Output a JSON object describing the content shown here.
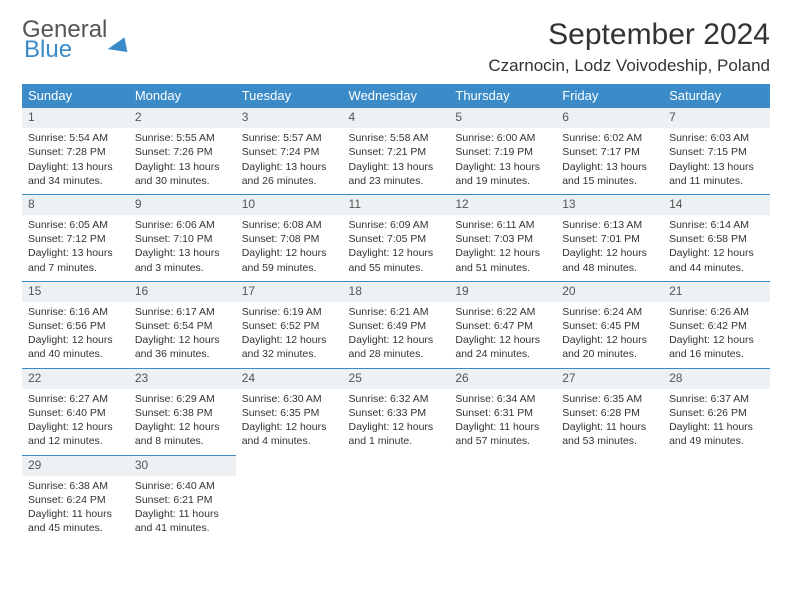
{
  "brand": {
    "name1": "General",
    "name2": "Blue"
  },
  "title": "September 2024",
  "location": "Czarnocin, Lodz Voivodeship, Poland",
  "colors": {
    "accent": "#3b8bc9",
    "row_bg": "#eef1f3",
    "text": "#333333"
  },
  "day_headers": [
    "Sunday",
    "Monday",
    "Tuesday",
    "Wednesday",
    "Thursday",
    "Friday",
    "Saturday"
  ],
  "weeks": [
    [
      {
        "n": "1",
        "sr": "Sunrise: 5:54 AM",
        "ss": "Sunset: 7:28 PM",
        "d1": "Daylight: 13 hours",
        "d2": "and 34 minutes."
      },
      {
        "n": "2",
        "sr": "Sunrise: 5:55 AM",
        "ss": "Sunset: 7:26 PM",
        "d1": "Daylight: 13 hours",
        "d2": "and 30 minutes."
      },
      {
        "n": "3",
        "sr": "Sunrise: 5:57 AM",
        "ss": "Sunset: 7:24 PM",
        "d1": "Daylight: 13 hours",
        "d2": "and 26 minutes."
      },
      {
        "n": "4",
        "sr": "Sunrise: 5:58 AM",
        "ss": "Sunset: 7:21 PM",
        "d1": "Daylight: 13 hours",
        "d2": "and 23 minutes."
      },
      {
        "n": "5",
        "sr": "Sunrise: 6:00 AM",
        "ss": "Sunset: 7:19 PM",
        "d1": "Daylight: 13 hours",
        "d2": "and 19 minutes."
      },
      {
        "n": "6",
        "sr": "Sunrise: 6:02 AM",
        "ss": "Sunset: 7:17 PM",
        "d1": "Daylight: 13 hours",
        "d2": "and 15 minutes."
      },
      {
        "n": "7",
        "sr": "Sunrise: 6:03 AM",
        "ss": "Sunset: 7:15 PM",
        "d1": "Daylight: 13 hours",
        "d2": "and 11 minutes."
      }
    ],
    [
      {
        "n": "8",
        "sr": "Sunrise: 6:05 AM",
        "ss": "Sunset: 7:12 PM",
        "d1": "Daylight: 13 hours",
        "d2": "and 7 minutes."
      },
      {
        "n": "9",
        "sr": "Sunrise: 6:06 AM",
        "ss": "Sunset: 7:10 PM",
        "d1": "Daylight: 13 hours",
        "d2": "and 3 minutes."
      },
      {
        "n": "10",
        "sr": "Sunrise: 6:08 AM",
        "ss": "Sunset: 7:08 PM",
        "d1": "Daylight: 12 hours",
        "d2": "and 59 minutes."
      },
      {
        "n": "11",
        "sr": "Sunrise: 6:09 AM",
        "ss": "Sunset: 7:05 PM",
        "d1": "Daylight: 12 hours",
        "d2": "and 55 minutes."
      },
      {
        "n": "12",
        "sr": "Sunrise: 6:11 AM",
        "ss": "Sunset: 7:03 PM",
        "d1": "Daylight: 12 hours",
        "d2": "and 51 minutes."
      },
      {
        "n": "13",
        "sr": "Sunrise: 6:13 AM",
        "ss": "Sunset: 7:01 PM",
        "d1": "Daylight: 12 hours",
        "d2": "and 48 minutes."
      },
      {
        "n": "14",
        "sr": "Sunrise: 6:14 AM",
        "ss": "Sunset: 6:58 PM",
        "d1": "Daylight: 12 hours",
        "d2": "and 44 minutes."
      }
    ],
    [
      {
        "n": "15",
        "sr": "Sunrise: 6:16 AM",
        "ss": "Sunset: 6:56 PM",
        "d1": "Daylight: 12 hours",
        "d2": "and 40 minutes."
      },
      {
        "n": "16",
        "sr": "Sunrise: 6:17 AM",
        "ss": "Sunset: 6:54 PM",
        "d1": "Daylight: 12 hours",
        "d2": "and 36 minutes."
      },
      {
        "n": "17",
        "sr": "Sunrise: 6:19 AM",
        "ss": "Sunset: 6:52 PM",
        "d1": "Daylight: 12 hours",
        "d2": "and 32 minutes."
      },
      {
        "n": "18",
        "sr": "Sunrise: 6:21 AM",
        "ss": "Sunset: 6:49 PM",
        "d1": "Daylight: 12 hours",
        "d2": "and 28 minutes."
      },
      {
        "n": "19",
        "sr": "Sunrise: 6:22 AM",
        "ss": "Sunset: 6:47 PM",
        "d1": "Daylight: 12 hours",
        "d2": "and 24 minutes."
      },
      {
        "n": "20",
        "sr": "Sunrise: 6:24 AM",
        "ss": "Sunset: 6:45 PM",
        "d1": "Daylight: 12 hours",
        "d2": "and 20 minutes."
      },
      {
        "n": "21",
        "sr": "Sunrise: 6:26 AM",
        "ss": "Sunset: 6:42 PM",
        "d1": "Daylight: 12 hours",
        "d2": "and 16 minutes."
      }
    ],
    [
      {
        "n": "22",
        "sr": "Sunrise: 6:27 AM",
        "ss": "Sunset: 6:40 PM",
        "d1": "Daylight: 12 hours",
        "d2": "and 12 minutes."
      },
      {
        "n": "23",
        "sr": "Sunrise: 6:29 AM",
        "ss": "Sunset: 6:38 PM",
        "d1": "Daylight: 12 hours",
        "d2": "and 8 minutes."
      },
      {
        "n": "24",
        "sr": "Sunrise: 6:30 AM",
        "ss": "Sunset: 6:35 PM",
        "d1": "Daylight: 12 hours",
        "d2": "and 4 minutes."
      },
      {
        "n": "25",
        "sr": "Sunrise: 6:32 AM",
        "ss": "Sunset: 6:33 PM",
        "d1": "Daylight: 12 hours",
        "d2": "and 1 minute."
      },
      {
        "n": "26",
        "sr": "Sunrise: 6:34 AM",
        "ss": "Sunset: 6:31 PM",
        "d1": "Daylight: 11 hours",
        "d2": "and 57 minutes."
      },
      {
        "n": "27",
        "sr": "Sunrise: 6:35 AM",
        "ss": "Sunset: 6:28 PM",
        "d1": "Daylight: 11 hours",
        "d2": "and 53 minutes."
      },
      {
        "n": "28",
        "sr": "Sunrise: 6:37 AM",
        "ss": "Sunset: 6:26 PM",
        "d1": "Daylight: 11 hours",
        "d2": "and 49 minutes."
      }
    ],
    [
      {
        "n": "29",
        "sr": "Sunrise: 6:38 AM",
        "ss": "Sunset: 6:24 PM",
        "d1": "Daylight: 11 hours",
        "d2": "and 45 minutes."
      },
      {
        "n": "30",
        "sr": "Sunrise: 6:40 AM",
        "ss": "Sunset: 6:21 PM",
        "d1": "Daylight: 11 hours",
        "d2": "and 41 minutes."
      },
      null,
      null,
      null,
      null,
      null
    ]
  ]
}
